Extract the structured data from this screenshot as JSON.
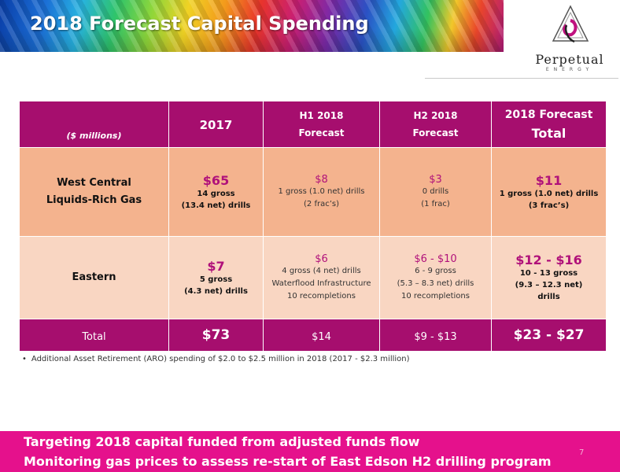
{
  "slide": {
    "title": "2018 Forecast Capital Spending",
    "logo": {
      "name": "Perpetual",
      "sub": "ENERGY"
    },
    "page_number": "7"
  },
  "table": {
    "units": "($ millions)",
    "columns": [
      "2017",
      "H1 2018",
      "Forecast",
      "H2 2018",
      "Forecast",
      "2018 Forecast",
      "Total"
    ],
    "rows": [
      {
        "label_line1": "West Central",
        "label_line2": "Liquids-Rich Gas",
        "y2017_amount": "$65",
        "y2017_detail1": "14 gross",
        "y2017_detail2": "(13.4 net) drills",
        "h1_amount": "$8",
        "h1_detail1": "1 gross (1.0 net) drills",
        "h1_detail2": "(2 frac’s)",
        "h2_amount": "$3",
        "h2_detail1": "0 drills",
        "h2_detail2": "(1 frac)",
        "total_amount": "$11",
        "total_detail1": "1 gross (1.0 net) drills",
        "total_detail2": "(3 frac’s)"
      },
      {
        "label_line1": "Eastern",
        "y2017_amount": "$7",
        "y2017_detail1": "5 gross",
        "y2017_detail2": "(4.3 net) drills",
        "h1_amount": "$6",
        "h1_detail1": "4 gross (4 net) drills",
        "h1_detail2": "Waterflood Infrastructure",
        "h1_detail3": "10 recompletions",
        "h2_amount": "$6 - $10",
        "h2_detail1": "6 - 9 gross",
        "h2_detail2": "(5.3 – 8.3 net) drills",
        "h2_detail3": "10 recompletions",
        "total_amount": "$12 - $16",
        "total_detail1": "10 - 13 gross",
        "total_detail2": "(9.3 – 12.3 net)",
        "total_detail3": "drills"
      }
    ],
    "total": {
      "label": "Total",
      "y2017": "$73",
      "h1": "$14",
      "h2": "$9 - $13",
      "forecast": "$23 - $27"
    }
  },
  "footnote": "Additional Asset Retirement (ARO) spending of $2.0 to $2.5 million in 2018 (2017 - $2.3 million)",
  "bottom_bar": {
    "line1": "Targeting 2018 capital funded from adjusted funds flow",
    "line2": "Monitoring gas prices to assess re-start of East Edson H2 drilling program"
  },
  "colors": {
    "magenta_header": "#a60e6e",
    "row1_bg": "#f4b38e",
    "row2_bg": "#f9d6c2",
    "accent_text": "#b0117a",
    "bottom_bar": "#e5118c"
  }
}
